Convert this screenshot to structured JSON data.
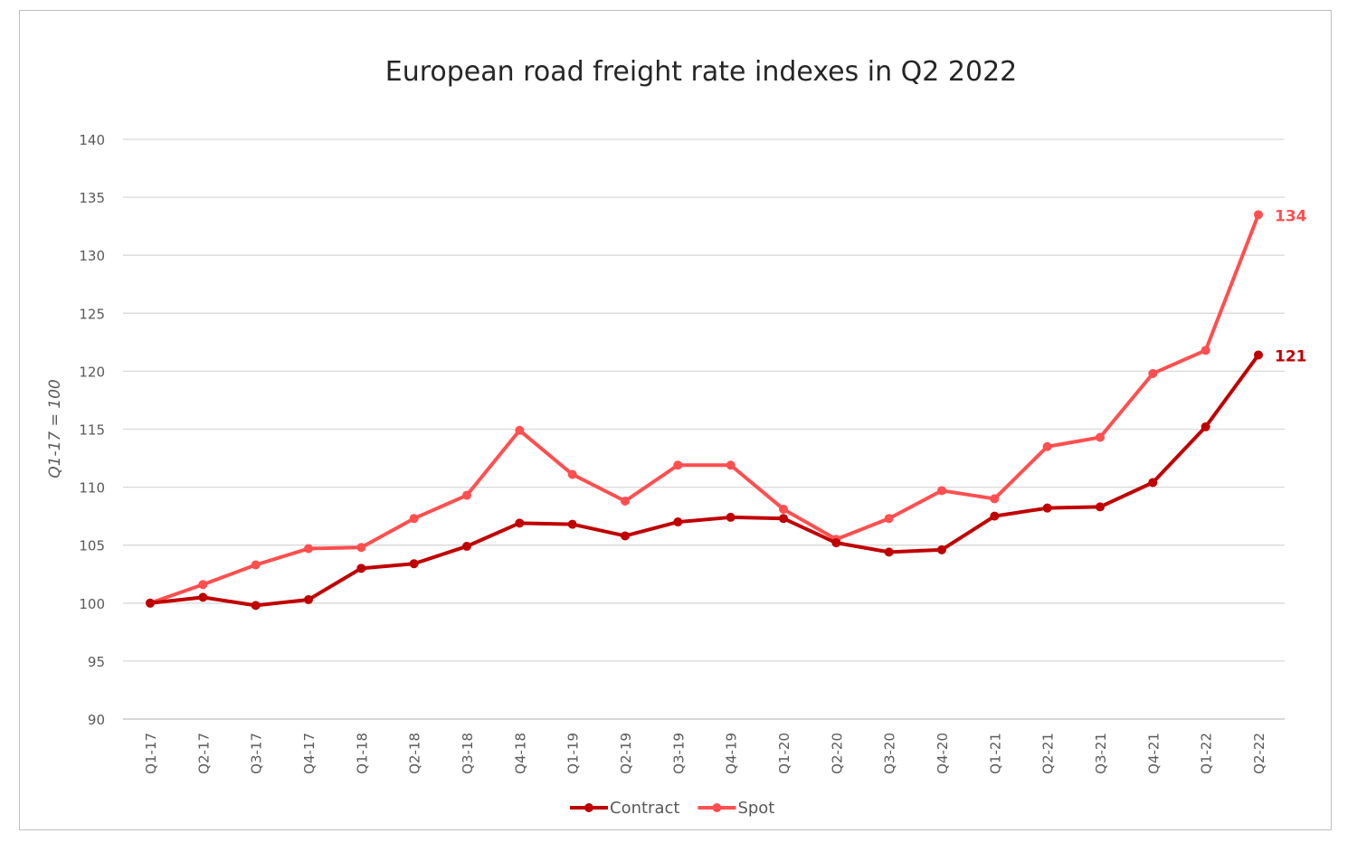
{
  "chart_data": {
    "type": "line",
    "title": "European road freight rate indexes in Q2 2022",
    "xlabel": "",
    "ylabel": "Q1-17 = 100",
    "ylim": [
      90,
      140
    ],
    "yticks": [
      90,
      95,
      100,
      105,
      110,
      115,
      120,
      125,
      130,
      135,
      140
    ],
    "grid": true,
    "legend": "bottom",
    "categories": [
      "Q1-17",
      "Q2-17",
      "Q3-17",
      "Q4-17",
      "Q1-18",
      "Q2-18",
      "Q3-18",
      "Q4-18",
      "Q1-19",
      "Q2-19",
      "Q3-19",
      "Q4-19",
      "Q1-20",
      "Q2-20",
      "Q3-20",
      "Q4-20",
      "Q1-21",
      "Q2-21",
      "Q3-21",
      "Q4-21",
      "Q1-22",
      "Q2-22"
    ],
    "series": [
      {
        "name": "Contract",
        "color": "#c00000",
        "end_label": "121",
        "values": [
          100,
          100.5,
          99.8,
          100.3,
          103.0,
          103.4,
          104.9,
          106.9,
          106.8,
          105.8,
          107.0,
          107.4,
          107.3,
          105.2,
          104.4,
          104.6,
          107.5,
          108.2,
          108.3,
          110.4,
          115.2,
          121.4
        ]
      },
      {
        "name": "Spot",
        "color": "#ff4f4f",
        "end_label": "134",
        "values": [
          100,
          101.6,
          103.3,
          104.7,
          104.8,
          107.3,
          109.3,
          114.9,
          111.1,
          108.8,
          111.9,
          111.9,
          108.1,
          105.5,
          107.3,
          109.7,
          109.0,
          113.5,
          114.3,
          119.8,
          121.8,
          133.5
        ]
      }
    ]
  }
}
